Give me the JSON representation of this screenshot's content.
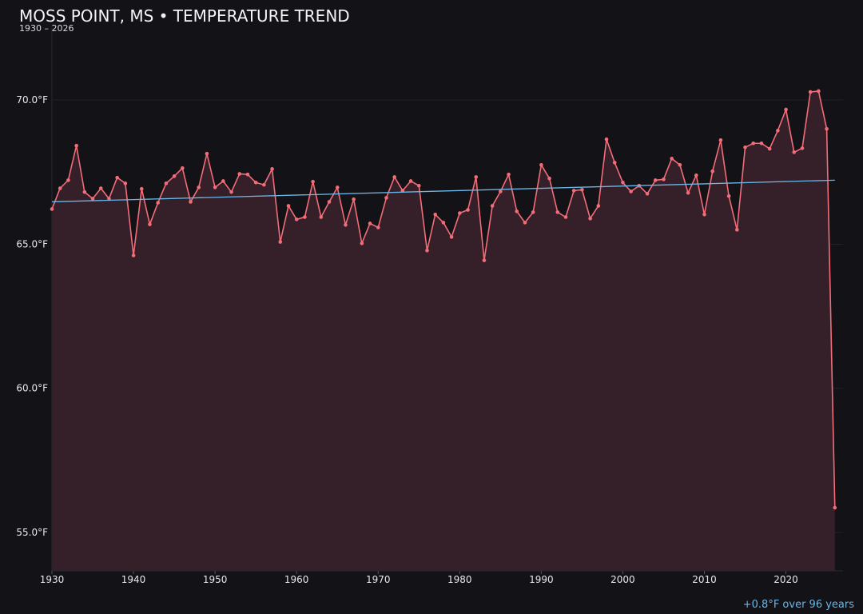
{
  "chart_data": {
    "type": "line",
    "title": "MOSS POINT, MS • TEMPERATURE TREND",
    "subtitle": "1930 – 2026",
    "annotation": "+0.8°F over 96 years",
    "x": [
      1930,
      1931,
      1932,
      1933,
      1934,
      1935,
      1936,
      1937,
      1938,
      1939,
      1940,
      1941,
      1942,
      1943,
      1944,
      1945,
      1946,
      1947,
      1948,
      1949,
      1950,
      1951,
      1952,
      1953,
      1954,
      1955,
      1956,
      1957,
      1958,
      1959,
      1960,
      1961,
      1962,
      1963,
      1964,
      1965,
      1966,
      1967,
      1968,
      1969,
      1970,
      1971,
      1972,
      1973,
      1974,
      1975,
      1976,
      1977,
      1978,
      1979,
      1980,
      1981,
      1982,
      1983,
      1984,
      1985,
      1986,
      1987,
      1988,
      1989,
      1990,
      1991,
      1992,
      1993,
      1994,
      1995,
      1996,
      1997,
      1998,
      1999,
      2000,
      2001,
      2002,
      2003,
      2004,
      2005,
      2006,
      2007,
      2008,
      2009,
      2010,
      2011,
      2012,
      2013,
      2014,
      2015,
      2016,
      2017,
      2018,
      2019,
      2020,
      2021,
      2022,
      2023,
      2024,
      2025,
      2026
    ],
    "series": [
      {
        "color": "#f26d78",
        "fill": "#35202a",
        "values": [
          66.22,
          66.94,
          67.22,
          68.42,
          66.81,
          66.58,
          66.94,
          66.58,
          67.31,
          67.11,
          64.61,
          66.92,
          65.69,
          66.44,
          67.11,
          67.36,
          67.64,
          66.47,
          66.97,
          68.14,
          66.97,
          67.19,
          66.81,
          67.44,
          67.42,
          67.14,
          67.06,
          67.61,
          65.08,
          66.33,
          65.86,
          65.94,
          67.17,
          65.94,
          66.47,
          66.97,
          65.67,
          66.56,
          65.03,
          65.72,
          65.58,
          66.61,
          67.33,
          66.86,
          67.19,
          67.03,
          64.78,
          66.03,
          65.75,
          65.25,
          66.08,
          66.19,
          67.33,
          64.44,
          66.33,
          66.83,
          67.42,
          66.14,
          65.75,
          66.11,
          67.75,
          67.28,
          66.11,
          65.94,
          66.86,
          66.89,
          65.89,
          66.33,
          68.64,
          67.83,
          67.14,
          66.83,
          67.03,
          66.75,
          67.22,
          67.25,
          67.97,
          67.75,
          66.78,
          67.39,
          66.03,
          67.53,
          68.61,
          66.67,
          65.5,
          68.36,
          68.5,
          68.5,
          68.31,
          68.94,
          69.67,
          68.19,
          68.33,
          70.28,
          70.31,
          69.0,
          55.86
        ]
      }
    ],
    "trend": {
      "color": "#6ab7e8",
      "x": [
        1930,
        2026
      ],
      "values": [
        66.47,
        67.22
      ]
    },
    "xlim": [
      1930,
      2027
    ],
    "xticks": [
      1930,
      1940,
      1950,
      1960,
      1970,
      1980,
      1990,
      2000,
      2010,
      2020
    ],
    "ylim": [
      53.67,
      72.5
    ],
    "yticks": [
      {
        "value": 55,
        "label": "55.0°F"
      },
      {
        "value": 60,
        "label": "60.0°F"
      },
      {
        "value": 65,
        "label": "65.0°F"
      },
      {
        "value": 70,
        "label": "70.0°F"
      }
    ],
    "grid": true
  }
}
